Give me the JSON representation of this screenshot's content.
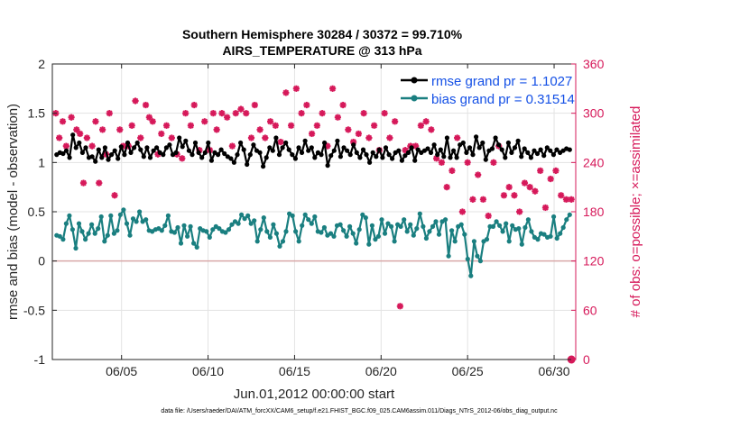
{
  "chart_data": {
    "type": "line",
    "title_line1": "Southern Hemisphere 30284 / 30372 = 99.710%",
    "title_line2": "AIRS_TEMPERATURE @ 313 hPa",
    "xlabel": "Jun.01,2012 00:00:00 start",
    "ylabel_left": "rmse and bias (model - observation)",
    "ylabel_right": "# of obs: o=possible; ×=assimilated",
    "footer": "data file: /Users/raeder/DAI/ATM_forcXX/CAM6_setup/f.e21.FHIST_BGC.f09_025.CAM6assim.011/Diags_NTrS_2012-06/obs_diag_output.nc",
    "xlim": [
      1.0,
      31.25
    ],
    "x_ticks": [
      5,
      10,
      15,
      20,
      25,
      30
    ],
    "x_tick_labels": [
      "06/05",
      "06/10",
      "06/15",
      "06/20",
      "06/25",
      "06/30"
    ],
    "ylim_left": [
      -1,
      2
    ],
    "y_left_ticks": [
      -1,
      -0.5,
      0,
      0.5,
      1,
      1.5,
      2
    ],
    "y_left_tick_labels": [
      "-1",
      "-0.5",
      "0",
      "0.5",
      "1",
      "1.5",
      "2"
    ],
    "ylim_right": [
      0,
      360
    ],
    "y_right_ticks": [
      0,
      60,
      120,
      180,
      240,
      300,
      360
    ],
    "y_right_tick_labels": [
      "0",
      "60",
      "120",
      "180",
      "240",
      "300",
      "360"
    ],
    "grid": true,
    "legend_position": "top-right",
    "colors": {
      "rmse": "#000000",
      "bias": "#1a7f80",
      "obs": "#d6195a",
      "zero_line": "#d9a8a8",
      "legend_text": "#1450e6",
      "axis": "#262626",
      "grid": "#e3e3e3"
    },
    "series": [
      {
        "name": "rmse grand pr = 1.1027",
        "values": [
          1.08,
          1.1,
          1.09,
          1.12,
          1.05,
          1.28,
          1.15,
          1.2,
          1.1,
          1.15,
          1.05,
          1.06,
          1.01,
          1.13,
          1.05,
          1.15,
          1.03,
          1.08,
          1.12,
          1.04,
          1.16,
          1.08,
          1.2,
          1.1,
          1.15,
          1.2,
          1.13,
          1.06,
          1.15,
          1.05,
          1.12,
          1.15,
          1.1,
          1.08,
          1.15,
          1.18,
          1.08,
          1.1,
          1.25,
          1.16,
          1.22,
          1.12,
          1.08,
          1.2,
          1.1,
          1.05,
          1.1,
          1.2,
          1.02,
          1.1,
          1.08,
          1.13,
          1.09,
          1.06,
          1.04,
          1.0,
          1.08,
          1.2,
          1.13,
          0.98,
          1.08,
          1.18,
          1.12,
          1.1,
          0.96,
          1.05,
          1.15,
          1.12,
          1.25,
          1.08,
          1.15,
          1.2,
          1.13,
          1.08,
          1.04,
          1.15,
          1.1,
          1.22,
          1.12,
          1.15,
          1.05,
          1.1,
          1.08,
          1.2,
          0.97,
          1.07,
          1.12,
          1.22,
          1.06,
          1.15,
          1.12,
          1.08,
          1.18,
          1.1,
          1.05,
          1.13,
          1.08,
          1.0,
          1.1,
          1.06,
          1.13,
          1.05,
          1.15,
          1.08,
          1.04,
          1.1,
          1.12,
          1.02,
          1.07,
          1.1,
          1.15,
          1.02,
          1.13,
          1.1,
          1.12,
          1.14,
          1.1,
          1.18,
          1.08,
          1.13,
          1.06,
          1.25,
          1.05,
          1.12,
          1.05,
          1.18,
          1.2,
          1.1,
          1.15,
          1.08,
          1.26,
          1.15,
          1.2,
          1.03,
          1.12,
          1.14,
          1.25,
          1.18,
          1.13,
          1.05,
          1.2,
          1.1,
          1.15,
          1.22,
          1.06,
          1.14,
          1.1,
          1.05,
          1.12,
          1.09,
          1.13,
          1.07,
          1.15,
          1.12,
          1.08,
          1.13,
          1.1,
          1.12,
          1.14,
          1.13
        ]
      },
      {
        "name": "bias grand pr = 0.31514",
        "values": [
          0.26,
          0.25,
          0.22,
          0.38,
          0.46,
          0.32,
          0.13,
          0.38,
          0.3,
          0.22,
          0.28,
          0.37,
          0.28,
          0.33,
          0.45,
          0.2,
          0.26,
          0.46,
          0.28,
          0.31,
          0.47,
          0.52,
          0.38,
          0.26,
          0.43,
          0.4,
          0.5,
          0.4,
          0.42,
          0.31,
          0.3,
          0.32,
          0.33,
          0.31,
          0.36,
          0.46,
          0.3,
          0.29,
          0.34,
          0.18,
          0.36,
          0.25,
          0.35,
          0.18,
          0.14,
          0.33,
          0.31,
          0.3,
          0.24,
          0.32,
          0.35,
          0.33,
          0.3,
          0.29,
          0.32,
          0.37,
          0.4,
          0.38,
          0.47,
          0.43,
          0.46,
          0.38,
          0.41,
          0.2,
          0.32,
          0.44,
          0.3,
          0.24,
          0.37,
          0.28,
          0.15,
          0.2,
          0.3,
          0.48,
          0.46,
          0.3,
          0.2,
          0.36,
          0.47,
          0.42,
          0.38,
          0.45,
          0.3,
          0.29,
          0.34,
          0.26,
          0.28,
          0.25,
          0.36,
          0.37,
          0.31,
          0.25,
          0.35,
          0.28,
          0.18,
          0.32,
          0.47,
          0.44,
          0.17,
          0.36,
          0.22,
          0.25,
          0.42,
          0.28,
          0.38,
          0.35,
          0.2,
          0.37,
          0.35,
          0.42,
          0.3,
          0.37,
          0.26,
          0.33,
          0.48,
          0.35,
          0.23,
          0.3,
          0.35,
          0.4,
          0.27,
          0.4,
          0.42,
          0.05,
          0.31,
          0.2,
          0.35,
          0.37,
          0.27,
          0.02,
          -0.15,
          0.2,
          0.05,
          0.0,
          0.2,
          0.22,
          0.35,
          0.35,
          0.4,
          0.36,
          0.3,
          0.38,
          0.2,
          0.36,
          0.32,
          0.33,
          0.17,
          0.34,
          0.42,
          0.3,
          0.24,
          0.22,
          0.28,
          0.27,
          0.24,
          0.25,
          0.45,
          0.23,
          0.28,
          0.34,
          0.42,
          0.47
        ]
      },
      {
        "name": "# of obs assimilated",
        "axis": "right",
        "marker": "asterisk",
        "x": [
          1.2,
          1.4,
          1.6,
          1.8,
          2.1,
          2.4,
          2.6,
          2.8,
          3.0,
          3.3,
          3.5,
          3.7,
          3.9,
          4.1,
          4.3,
          4.6,
          4.9,
          5.1,
          5.4,
          5.6,
          5.8,
          6.1,
          6.4,
          6.6,
          6.8,
          7.1,
          7.3,
          7.6,
          7.9,
          8.2,
          8.5,
          8.7,
          9.0,
          9.2,
          9.5,
          9.8,
          10.1,
          10.3,
          10.5,
          10.8,
          11.1,
          11.4,
          11.6,
          11.9,
          12.2,
          12.5,
          12.7,
          13.0,
          13.3,
          13.6,
          13.9,
          14.2,
          14.5,
          14.8,
          15.1,
          15.4,
          15.7,
          16.0,
          16.3,
          16.6,
          16.9,
          17.2,
          17.5,
          17.8,
          18.1,
          18.4,
          18.7,
          19.0,
          19.3,
          19.6,
          19.9,
          20.2,
          20.5,
          20.8,
          21.1,
          21.4,
          21.7,
          22.0,
          22.3,
          22.6,
          22.9,
          23.2,
          23.5,
          23.8,
          24.1,
          24.4,
          24.7,
          25.0,
          25.3,
          25.6,
          25.9,
          26.2,
          26.5,
          26.8,
          27.1,
          27.4,
          27.7,
          28.0,
          28.3,
          28.6,
          28.9,
          29.2,
          29.5,
          29.8,
          30.1,
          30.4,
          30.7,
          31.0
        ],
        "values": [
          300,
          270,
          290,
          260,
          295,
          280,
          275,
          215,
          270,
          260,
          290,
          215,
          280,
          250,
          300,
          200,
          280,
          260,
          260,
          285,
          315,
          270,
          310,
          295,
          290,
          250,
          275,
          285,
          270,
          250,
          245,
          300,
          285,
          310,
          255,
          290,
          255,
          300,
          280,
          300,
          295,
          260,
          300,
          305,
          300,
          270,
          310,
          280,
          270,
          290,
          285,
          265,
          325,
          285,
          330,
          300,
          310,
          275,
          285,
          300,
          260,
          330,
          295,
          310,
          280,
          265,
          275,
          300,
          270,
          285,
          255,
          300,
          270,
          290,
          65,
          255,
          260,
          260,
          285,
          290,
          280,
          245,
          240,
          210,
          230,
          270,
          180,
          240,
          195,
          225,
          195,
          175,
          240,
          260,
          200,
          210,
          200,
          180,
          215,
          210,
          205,
          230,
          185,
          220,
          230,
          200,
          195,
          195
        ]
      },
      {
        "name": "# of obs possible",
        "axis": "right",
        "marker": "circle",
        "x": [
          31.0
        ],
        "values": [
          0
        ]
      }
    ]
  }
}
